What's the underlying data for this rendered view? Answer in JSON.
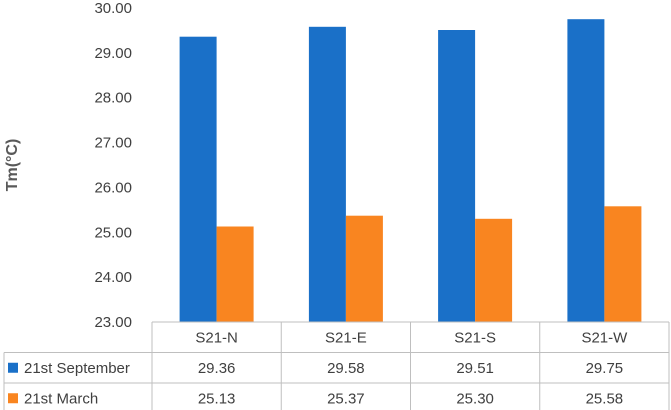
{
  "chart_data": {
    "type": "bar",
    "categories": [
      "S21-N",
      "S21-E",
      "S21-S",
      "S21-W"
    ],
    "series": [
      {
        "name": "21st September",
        "color": "#1a70c8",
        "values": [
          29.36,
          29.58,
          29.51,
          29.75
        ]
      },
      {
        "name": "21st March",
        "color": "#f98520",
        "values": [
          25.13,
          25.37,
          25.3,
          25.58
        ]
      }
    ],
    "value_labels": [
      [
        "29.36",
        "29.58",
        "29.51",
        "29.75"
      ],
      [
        "25.13",
        "25.37",
        "25.30",
        "25.58"
      ]
    ],
    "ylabel": "Tm(°C)",
    "ylim": [
      23,
      30
    ],
    "yticks": [
      "23.00",
      "24.00",
      "25.00",
      "26.00",
      "27.00",
      "28.00",
      "29.00",
      "30.00"
    ],
    "legend": "data-table",
    "grid": false
  }
}
